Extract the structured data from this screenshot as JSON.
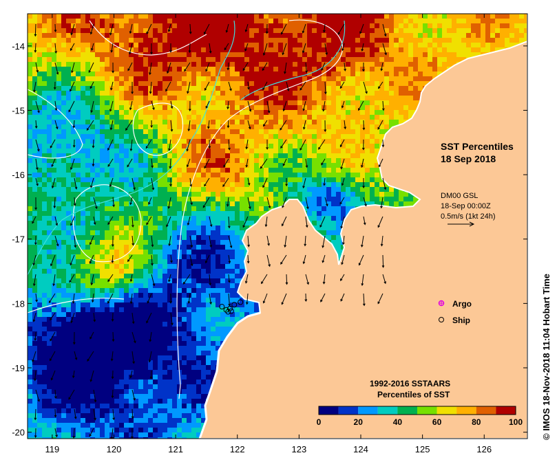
{
  "title": {
    "line1": "SST Percentiles",
    "line2": "18 Sep 2018"
  },
  "currents": {
    "line1": "DM00 GSL",
    "line2": "18-Sep 00:00Z",
    "line3": "0.5m/s (1kt 24h)"
  },
  "legend": {
    "argo_label": "Argo",
    "ship_label": "Ship",
    "argo_color": "#e000e0",
    "ship_color": "#000000"
  },
  "colorbar": {
    "title_line1": "1992-2016 SSTAARS",
    "title_line2": "Percentiles of SST",
    "colors": [
      "#000080",
      "#0033c8",
      "#0099ff",
      "#00ccc0",
      "#00b050",
      "#77e000",
      "#f0e000",
      "#ffb000",
      "#e06000",
      "#b00000"
    ],
    "tick_labels": [
      "0",
      "20",
      "40",
      "60",
      "80",
      "100"
    ]
  },
  "copyright": "© IMOS 18-Nov-2018 11:04 Hobart Time",
  "land_color": "#fcc896",
  "chart_data": {
    "type": "heatmap",
    "xlabel": "",
    "ylabel": "",
    "xlim": [
      118.6,
      126.7
    ],
    "ylim": [
      -20.1,
      -13.5
    ],
    "x_ticks": [
      119,
      120,
      121,
      122,
      123,
      124,
      125,
      126
    ],
    "y_ticks": [
      -14,
      -15,
      -16,
      -17,
      -18,
      -19,
      -20
    ],
    "x_tick_labels": [
      "119",
      "120",
      "121",
      "122",
      "123",
      "124",
      "125",
      "126"
    ],
    "y_tick_labels": [
      "-14",
      "-15",
      "-16",
      "-17",
      "-18",
      "-19",
      "-20"
    ],
    "ship_positions": [
      [
        121.75,
        -18.05
      ],
      [
        121.82,
        -18.1
      ],
      [
        121.85,
        -18.13
      ],
      [
        121.88,
        -18.08
      ],
      [
        121.9,
        -18.12
      ],
      [
        121.95,
        -18.02
      ],
      [
        122.05,
        -17.98
      ]
    ]
  }
}
